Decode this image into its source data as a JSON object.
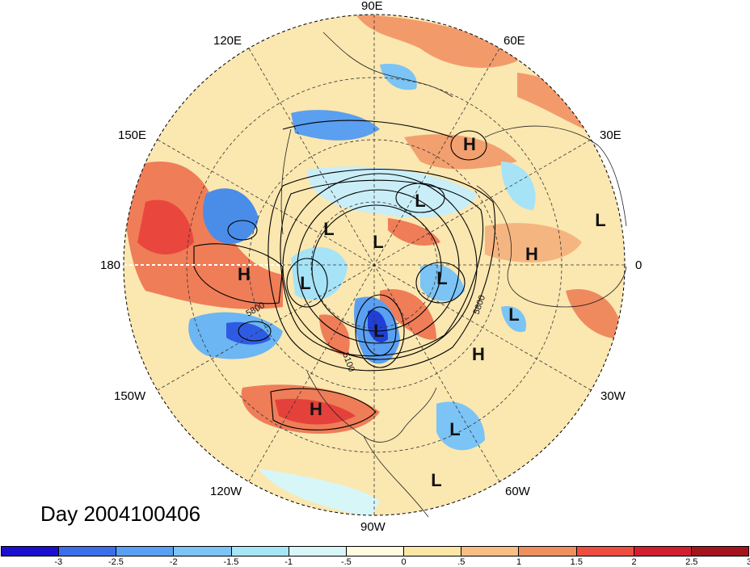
{
  "title": "Day 2004100406",
  "longitude_labels": {
    "n": "90E",
    "nne": "60E",
    "ene": "30E",
    "e": "0",
    "ese": "30W",
    "sse": "60W",
    "s": "90W",
    "ssw": "120W",
    "wsw": "150W",
    "w": "180",
    "wnw": "150E",
    "nnw": "120E"
  },
  "colorbar": {
    "colors": [
      "#1a0fce",
      "#3b6fe9",
      "#5aa0f2",
      "#7bc4f5",
      "#a6e6f7",
      "#d7f6f8",
      "#fdfbe0",
      "#fbe6a6",
      "#f7bf84",
      "#f08f5e",
      "#ec4e40",
      "#d21f2f",
      "#a3141f"
    ],
    "ticks": [
      "-3",
      "-2.5",
      "-2",
      "-1.5",
      "-1",
      "-.5",
      "0",
      ".5",
      "1",
      "1.5",
      "2",
      "2.5",
      "3"
    ]
  },
  "pressure_centers": [
    {
      "label": "H",
      "lon_note": "40E 60N"
    },
    {
      "label": "L",
      "lon_note": "100E"
    },
    {
      "label": "L",
      "lon_note": "140E"
    },
    {
      "label": "L",
      "lon_note": "N pole"
    },
    {
      "label": "L",
      "lon_note": "20W"
    },
    {
      "label": "L",
      "lon_note": "20E"
    },
    {
      "label": "H",
      "lon_note": "10E"
    },
    {
      "label": "H",
      "lon_note": "180"
    },
    {
      "label": "L",
      "lon_note": "160E"
    },
    {
      "label": "L",
      "lon_note": "80W"
    },
    {
      "label": "L",
      "lon_note": "15W"
    },
    {
      "label": "H",
      "lon_note": "30W"
    },
    {
      "label": "H",
      "lon_note": "120W"
    },
    {
      "label": "L",
      "lon_note": "60W 20N"
    },
    {
      "label": "L",
      "lon_note": "70W"
    }
  ],
  "contour_labels": [
    "5800",
    "5800",
    "5100"
  ]
}
